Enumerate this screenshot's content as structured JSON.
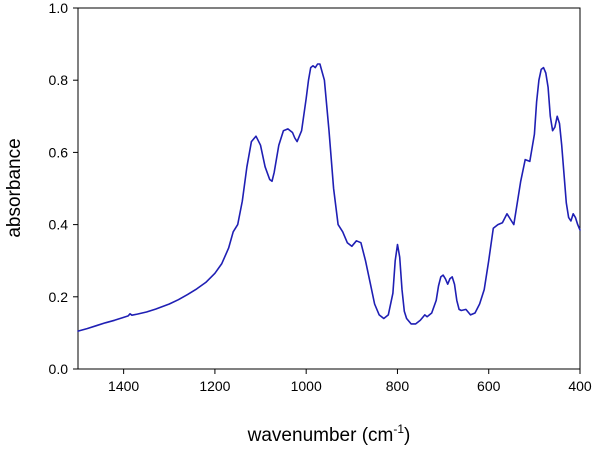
{
  "chart_data": {
    "type": "line",
    "title": "",
    "xlabel": "wavenumber (cm",
    "xlabel_superscript": "-1",
    "xlabel_suffix": ")",
    "ylabel": "absorbance",
    "xlim": [
      1500,
      400
    ],
    "ylim": [
      0.0,
      1.0
    ],
    "x_reversed": true,
    "grid": false,
    "legend": "none",
    "x_ticks": [
      1400,
      1200,
      1000,
      800,
      600,
      400
    ],
    "x_tick_labels": [
      "1400",
      "1200",
      "1000",
      "800",
      "600",
      "400"
    ],
    "y_ticks": [
      0.0,
      0.2,
      0.4,
      0.6,
      0.8,
      1.0
    ],
    "y_tick_labels": [
      "0.0",
      "0.2",
      "0.4",
      "0.6",
      "0.8",
      "1.0"
    ],
    "line_color": "#1f1fb4",
    "series": [
      {
        "x": [
          1500,
          1480,
          1460,
          1440,
          1420,
          1400,
          1390,
          1386,
          1382,
          1370,
          1350,
          1330,
          1300,
          1280,
          1260,
          1240,
          1220,
          1200,
          1185,
          1170,
          1160,
          1150,
          1140,
          1130,
          1120,
          1110,
          1100,
          1090,
          1080,
          1075,
          1070,
          1060,
          1050,
          1040,
          1030,
          1025,
          1020,
          1010,
          1000,
          995,
          990,
          985,
          980,
          975,
          970,
          960,
          950,
          940,
          930,
          920,
          910,
          900,
          890,
          880,
          870,
          860,
          850,
          840,
          830,
          820,
          810,
          805,
          800,
          795,
          790,
          785,
          780,
          770,
          760,
          750,
          740,
          735,
          725,
          715,
          710,
          705,
          700,
          695,
          690,
          685,
          680,
          675,
          670,
          665,
          660,
          650,
          640,
          630,
          620,
          610,
          600,
          590,
          580,
          570,
          560,
          550,
          545,
          540,
          530,
          520,
          510,
          500,
          495,
          490,
          485,
          480,
          475,
          470,
          465,
          460,
          455,
          450,
          445,
          440,
          435,
          430,
          425,
          420,
          415,
          410,
          405,
          400
        ],
        "y": [
          0.105,
          0.112,
          0.12,
          0.128,
          0.135,
          0.143,
          0.147,
          0.153,
          0.149,
          0.152,
          0.158,
          0.166,
          0.18,
          0.192,
          0.206,
          0.222,
          0.24,
          0.265,
          0.292,
          0.335,
          0.38,
          0.4,
          0.465,
          0.56,
          0.63,
          0.645,
          0.62,
          0.56,
          0.525,
          0.52,
          0.545,
          0.62,
          0.66,
          0.665,
          0.655,
          0.64,
          0.63,
          0.66,
          0.75,
          0.8,
          0.835,
          0.84,
          0.835,
          0.845,
          0.845,
          0.8,
          0.66,
          0.5,
          0.4,
          0.38,
          0.35,
          0.34,
          0.355,
          0.35,
          0.3,
          0.24,
          0.18,
          0.15,
          0.14,
          0.15,
          0.21,
          0.3,
          0.345,
          0.31,
          0.22,
          0.16,
          0.14,
          0.125,
          0.125,
          0.135,
          0.15,
          0.145,
          0.155,
          0.19,
          0.23,
          0.255,
          0.26,
          0.25,
          0.235,
          0.25,
          0.255,
          0.235,
          0.19,
          0.165,
          0.162,
          0.165,
          0.15,
          0.155,
          0.18,
          0.22,
          0.3,
          0.39,
          0.4,
          0.405,
          0.43,
          0.41,
          0.4,
          0.44,
          0.52,
          0.58,
          0.575,
          0.65,
          0.74,
          0.8,
          0.83,
          0.835,
          0.82,
          0.78,
          0.7,
          0.66,
          0.67,
          0.7,
          0.68,
          0.62,
          0.54,
          0.46,
          0.42,
          0.41,
          0.43,
          0.42,
          0.4,
          0.385
        ]
      }
    ]
  }
}
